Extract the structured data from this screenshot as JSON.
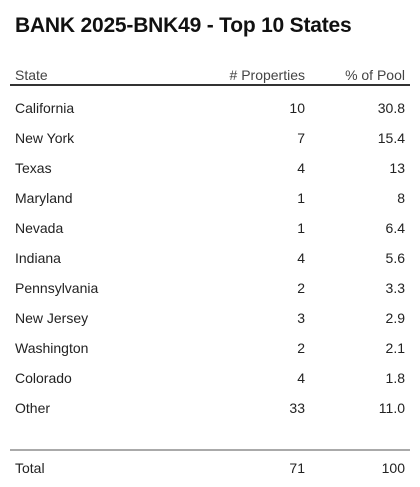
{
  "title": "BANK 2025-BNK49 - Top 10 States",
  "headers": {
    "state": "State",
    "properties": "# Properties",
    "pct": "% of Pool"
  },
  "rows": [
    {
      "state": "California",
      "properties": "10",
      "pct": "30.8"
    },
    {
      "state": "New York",
      "properties": "7",
      "pct": "15.4"
    },
    {
      "state": "Texas",
      "properties": "4",
      "pct": "13"
    },
    {
      "state": "Maryland",
      "properties": "1",
      "pct": "8"
    },
    {
      "state": "Nevada",
      "properties": "1",
      "pct": "6.4"
    },
    {
      "state": "Indiana",
      "properties": "4",
      "pct": "5.6"
    },
    {
      "state": "Pennsylvania",
      "properties": "2",
      "pct": "3.3"
    },
    {
      "state": "New Jersey",
      "properties": "3",
      "pct": "2.9"
    },
    {
      "state": "Washington",
      "properties": "2",
      "pct": "2.1"
    },
    {
      "state": "Colorado",
      "properties": "4",
      "pct": "1.8"
    },
    {
      "state": "Other",
      "properties": "33",
      "pct": "11.0"
    }
  ],
  "total": {
    "label": "Total",
    "properties": "71",
    "pct": "100"
  }
}
